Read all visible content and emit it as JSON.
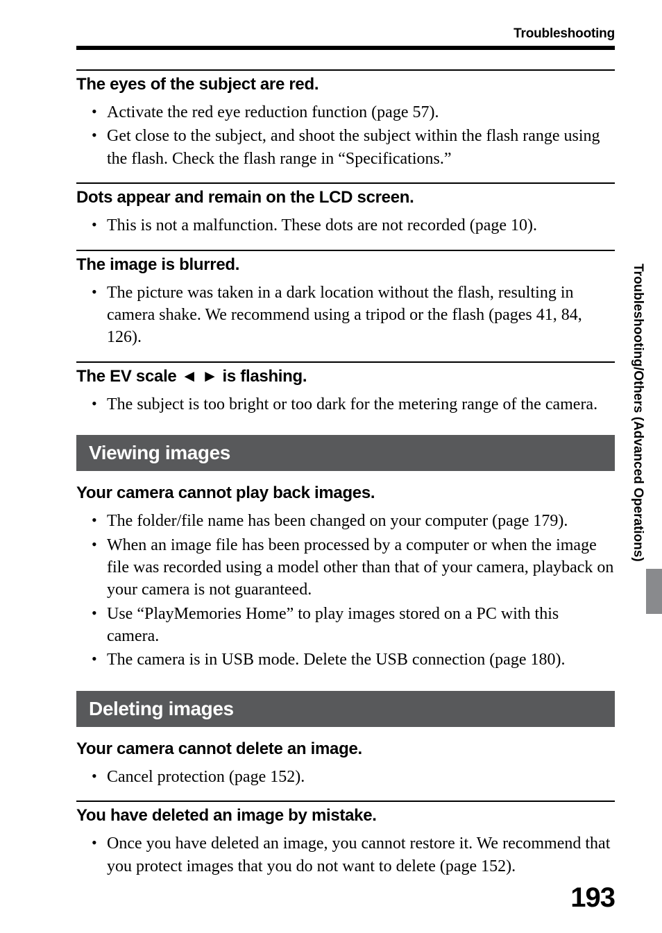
{
  "header": {
    "running_head": "Troubleshooting"
  },
  "side_label": "Troubleshooting/Others (Advanced Operations)",
  "page_number": "193",
  "colors": {
    "section_bar_bg": "#58595b",
    "thumb_tab_bg": "#898a8d"
  },
  "groups": [
    {
      "title": "The eyes of the subject are red.",
      "bullets": [
        "Activate the red eye reduction function (page 57).",
        "Get close to the subject, and shoot the subject within the flash range using the flash. Check the flash range in “Specifications.”"
      ]
    },
    {
      "title": "Dots appear and remain on the LCD screen.",
      "bullets": [
        "This is not a malfunction. These dots are not recorded (page 10)."
      ]
    },
    {
      "title": "The image is blurred.",
      "bullets": [
        "The picture was taken in a dark location without the flash, resulting in camera shake. We recommend using a tripod or the flash (pages 41, 84, 126)."
      ]
    },
    {
      "title_prefix": "The EV scale ",
      "title_arrows": "◄ ►",
      "title_suffix": " is flashing.",
      "bullets": [
        "The subject is too bright or too dark for the metering range of the camera."
      ]
    }
  ],
  "sections": [
    {
      "heading": "Viewing images",
      "groups": [
        {
          "title": "Your camera cannot play back images.",
          "no_top_rule": true,
          "bullets": [
            "The folder/file name has been changed on your computer (page 179).",
            "When an image file has been processed by a computer or when the image file was recorded using a model other than that of your camera, playback on your camera is not guaranteed.",
            "Use “PlayMemories Home” to play images stored on a PC with this camera.",
            "The camera is in USB mode. Delete the USB connection (page 180)."
          ]
        }
      ]
    },
    {
      "heading": "Deleting images",
      "groups": [
        {
          "title": "Your camera cannot delete an image.",
          "no_top_rule": true,
          "bullets": [
            "Cancel protection (page 152)."
          ]
        },
        {
          "title": "You have deleted an image by mistake.",
          "bullets": [
            "Once you have deleted an image, you cannot restore it. We recommend that you protect images that you do not want to delete (page 152)."
          ]
        }
      ]
    }
  ]
}
